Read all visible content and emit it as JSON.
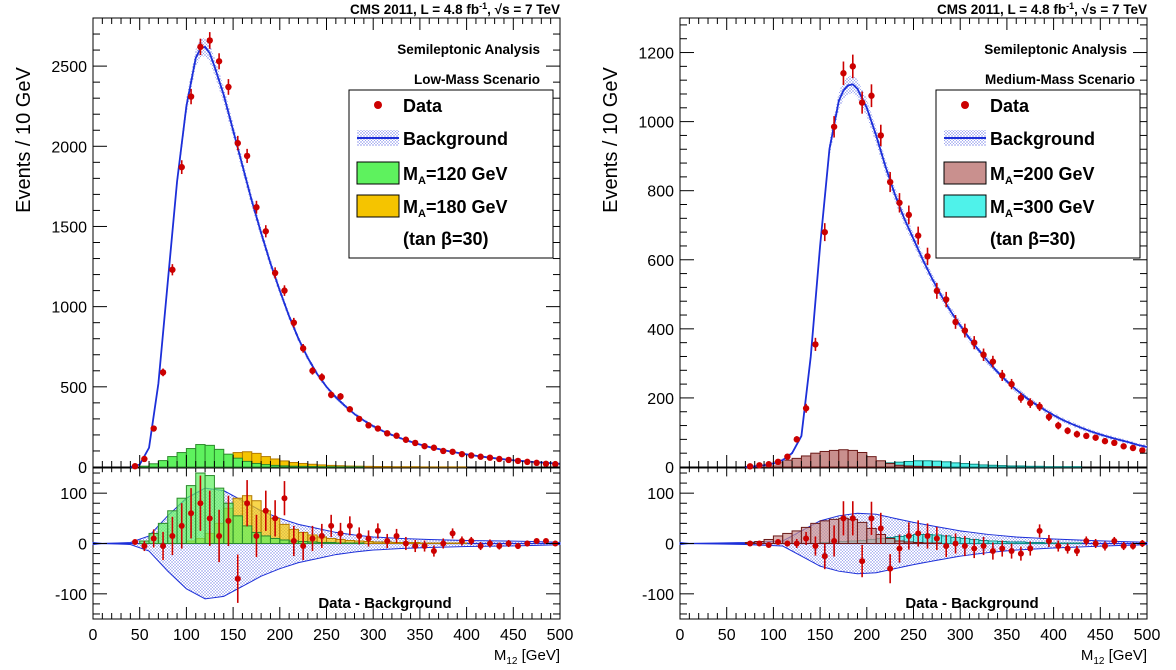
{
  "chart_data": [
    {
      "type": "bar",
      "header": "CMS 2011, L = 4.8 fb",
      "header_sup": "-1",
      "header_sqrt": "√s = 7 TeV",
      "analysis": "Semileptonic Analysis",
      "scenario": "Low-Mass Scenario",
      "ylabel": "Events / 10 GeV",
      "xlabel": "M",
      "xlabel_sub": "12",
      "xlabel_unit": "[GeV]",
      "lower_label": "Data - Background",
      "xlim": [
        0,
        500
      ],
      "ylim": [
        0,
        2800
      ],
      "ylim_lower": [
        -150,
        150
      ],
      "x_ticks": [
        0,
        50,
        100,
        150,
        200,
        250,
        300,
        350,
        400,
        450,
        500
      ],
      "y_ticks": [
        0,
        500,
        1000,
        1500,
        2000,
        2500
      ],
      "y_ticks_lower": [
        -100,
        0,
        100
      ],
      "colors": {
        "data": "#cc0000",
        "background": "#1c2fd9",
        "signal1": "#5ef25e",
        "signal1_edge": "#2a8a2a",
        "signal2": "#f5c400",
        "signal2_edge": "#b37a00"
      },
      "legend": {
        "data": "Data",
        "background": "Background",
        "signal1_label": "M",
        "signal1_sub": "A",
        "signal1_value": "=120 GeV",
        "signal2_label": "M",
        "signal2_sub": "A",
        "signal2_value": "=180 GeV",
        "note": "(tan β=30)"
      },
      "data_points": {
        "x": [
          45,
          55,
          65,
          75,
          85,
          95,
          105,
          115,
          125,
          135,
          145,
          155,
          165,
          175,
          185,
          195,
          205,
          215,
          225,
          235,
          245,
          255,
          265,
          275,
          285,
          295,
          305,
          315,
          325,
          335,
          345,
          355,
          365,
          375,
          385,
          395,
          405,
          415,
          425,
          435,
          445,
          455,
          465,
          475,
          485,
          495
        ],
        "y": [
          5,
          50,
          240,
          590,
          1230,
          1870,
          2310,
          2620,
          2660,
          2530,
          2370,
          2020,
          1940,
          1620,
          1470,
          1210,
          1100,
          900,
          740,
          600,
          560,
          450,
          440,
          360,
          300,
          260,
          240,
          210,
          195,
          170,
          150,
          130,
          120,
          100,
          95,
          80,
          72,
          64,
          58,
          50,
          44,
          38,
          32,
          26,
          20,
          18
        ],
        "err": [
          2,
          7,
          15,
          24,
          35,
          43,
          48,
          51,
          52,
          50,
          49,
          45,
          44,
          40,
          38,
          35,
          33,
          30,
          27,
          24,
          24,
          21,
          21,
          19,
          17,
          16,
          15,
          14,
          14,
          13,
          12,
          11,
          11,
          10,
          10,
          9,
          8,
          8,
          8,
          7,
          7,
          6,
          6,
          5,
          4,
          4
        ]
      },
      "background_curve": {
        "x": [
          40,
          50,
          60,
          70,
          80,
          90,
          100,
          110,
          115,
          120,
          125,
          130,
          140,
          150,
          160,
          170,
          180,
          190,
          200,
          210,
          220,
          230,
          240,
          250,
          260,
          270,
          280,
          290,
          300,
          310,
          320,
          330,
          340,
          350,
          360,
          370,
          380,
          390,
          400,
          410,
          420,
          430,
          440,
          450,
          460,
          470,
          480,
          490,
          500
        ],
        "y": [
          0,
          15,
          120,
          520,
          1150,
          1780,
          2250,
          2550,
          2610,
          2620,
          2580,
          2500,
          2320,
          2100,
          1880,
          1660,
          1460,
          1270,
          1100,
          940,
          800,
          680,
          580,
          500,
          435,
          380,
          330,
          290,
          255,
          225,
          200,
          178,
          158,
          140,
          125,
          112,
          100,
          89,
          79,
          70,
          62,
          55,
          48,
          42,
          37,
          32,
          28,
          24,
          20
        ]
      },
      "signal1_hist": {
        "bin_edges": [
          50,
          60,
          70,
          80,
          90,
          100,
          110,
          120,
          130,
          140,
          150,
          160,
          170,
          180,
          190,
          200,
          210,
          220,
          230,
          240,
          250,
          260,
          270,
          280,
          290,
          300,
          310,
          320,
          330,
          340,
          350
        ],
        "values": [
          5,
          20,
          40,
          65,
          90,
          115,
          140,
          135,
          110,
          80,
          55,
          35,
          22,
          15,
          10,
          7,
          5,
          4,
          3,
          2,
          2,
          1,
          1,
          1,
          0,
          0,
          0,
          0,
          0,
          0
        ]
      },
      "signal2_hist": {
        "bin_edges": [
          100,
          110,
          120,
          130,
          140,
          150,
          160,
          170,
          180,
          190,
          200,
          210,
          220,
          230,
          240,
          250,
          260,
          270,
          280,
          290,
          300,
          310,
          320,
          330,
          340,
          350,
          360,
          370,
          380,
          390,
          400
        ],
        "values": [
          5,
          10,
          20,
          40,
          70,
          90,
          95,
          85,
          65,
          50,
          38,
          28,
          22,
          17,
          13,
          10,
          8,
          6,
          5,
          4,
          3,
          3,
          2,
          2,
          2,
          1,
          1,
          1,
          1,
          1
        ]
      },
      "lower_data": {
        "x": [
          45,
          55,
          65,
          75,
          85,
          95,
          105,
          115,
          125,
          135,
          145,
          155,
          165,
          175,
          185,
          195,
          205,
          215,
          225,
          235,
          245,
          255,
          265,
          275,
          285,
          295,
          305,
          315,
          325,
          335,
          345,
          355,
          365,
          375,
          385,
          395,
          405,
          415,
          425,
          435,
          445,
          455,
          465,
          475,
          485,
          495
        ],
        "y": [
          3,
          -5,
          10,
          -5,
          15,
          35,
          60,
          80,
          50,
          15,
          45,
          -70,
          80,
          15,
          65,
          50,
          90,
          5,
          -5,
          10,
          15,
          35,
          20,
          35,
          15,
          10,
          25,
          5,
          15,
          0,
          -5,
          -5,
          -15,
          0,
          20,
          5,
          5,
          -5,
          0,
          -5,
          0,
          -5,
          0,
          5,
          5,
          0
        ],
        "err": [
          4,
          10,
          18,
          28,
          38,
          45,
          50,
          55,
          55,
          52,
          50,
          48,
          46,
          42,
          40,
          36,
          34,
          30,
          28,
          25,
          24,
          22,
          21,
          19,
          17,
          16,
          15,
          14,
          14,
          13,
          12,
          11,
          11,
          10,
          10,
          9,
          8,
          8,
          8,
          7,
          7,
          6,
          6,
          5,
          4,
          4
        ]
      },
      "lower_band_half_width": {
        "x": [
          0,
          10,
          40,
          60,
          80,
          100,
          120,
          140,
          160,
          180,
          200,
          220,
          240,
          260,
          280,
          300,
          330,
          360,
          400,
          440,
          470,
          490,
          500
        ],
        "y": [
          2,
          0,
          2,
          15,
          55,
          90,
          110,
          105,
          85,
          65,
          50,
          38,
          30,
          22,
          17,
          13,
          10,
          8,
          6,
          5,
          4,
          3,
          2
        ]
      }
    },
    {
      "type": "bar",
      "header": "CMS 2011, L = 4.8 fb",
      "header_sup": "-1",
      "header_sqrt": "√s = 7 TeV",
      "analysis": "Semileptonic Analysis",
      "scenario": "Medium-Mass Scenario",
      "ylabel": "Events / 10 GeV",
      "xlabel": "M",
      "xlabel_sub": "12",
      "xlabel_unit": "[GeV]",
      "lower_label": "Data - Background",
      "xlim": [
        0,
        500
      ],
      "ylim": [
        0,
        1300
      ],
      "ylim_lower": [
        -150,
        150
      ],
      "x_ticks": [
        0,
        50,
        100,
        150,
        200,
        250,
        300,
        350,
        400,
        450,
        500
      ],
      "y_ticks": [
        0,
        200,
        400,
        600,
        800,
        1000,
        1200
      ],
      "y_ticks_lower": [
        -100,
        0,
        100
      ],
      "colors": {
        "data": "#cc0000",
        "background": "#1c2fd9",
        "signal1": "#c9908e",
        "signal1_edge": "#6b1a18",
        "signal2": "#4ff2ea",
        "signal2_edge": "#0d8a84"
      },
      "legend": {
        "data": "Data",
        "background": "Background",
        "signal1_label": "M",
        "signal1_sub": "A",
        "signal1_value": "=200 GeV",
        "signal2_label": "M",
        "signal2_sub": "A",
        "signal2_value": "=300 GeV",
        "note": "(tan β=30)"
      },
      "data_points": {
        "x": [
          75,
          85,
          95,
          105,
          115,
          125,
          135,
          145,
          155,
          165,
          175,
          185,
          195,
          205,
          215,
          225,
          235,
          245,
          255,
          265,
          275,
          285,
          295,
          305,
          315,
          325,
          335,
          345,
          355,
          365,
          375,
          385,
          395,
          405,
          415,
          425,
          435,
          445,
          455,
          465,
          475,
          485,
          495
        ],
        "y": [
          2,
          5,
          8,
          15,
          30,
          80,
          170,
          355,
          680,
          985,
          1140,
          1160,
          1055,
          1075,
          960,
          825,
          765,
          730,
          670,
          610,
          510,
          485,
          420,
          395,
          360,
          325,
          305,
          265,
          240,
          200,
          185,
          175,
          145,
          120,
          105,
          95,
          90,
          85,
          75,
          70,
          60,
          55,
          48
        ],
        "err": [
          2,
          2,
          3,
          4,
          6,
          9,
          13,
          19,
          26,
          31,
          34,
          34,
          32,
          33,
          31,
          29,
          28,
          27,
          26,
          25,
          23,
          22,
          20,
          20,
          19,
          18,
          17,
          16,
          15,
          14,
          14,
          13,
          12,
          11,
          10,
          10,
          9,
          9,
          9,
          8,
          8,
          7,
          7
        ]
      },
      "background_curve": {
        "x": [
          70,
          80,
          90,
          100,
          110,
          120,
          130,
          140,
          150,
          160,
          170,
          175,
          180,
          185,
          190,
          200,
          210,
          220,
          230,
          240,
          250,
          260,
          270,
          280,
          290,
          300,
          310,
          320,
          330,
          340,
          350,
          360,
          370,
          380,
          390,
          400,
          410,
          420,
          430,
          440,
          450,
          460,
          470,
          480,
          490,
          500
        ],
        "y": [
          0,
          2,
          5,
          10,
          20,
          40,
          90,
          320,
          640,
          920,
          1060,
          1090,
          1105,
          1108,
          1095,
          1040,
          960,
          870,
          790,
          720,
          660,
          600,
          545,
          495,
          450,
          410,
          372,
          338,
          305,
          275,
          248,
          224,
          202,
          183,
          166,
          150,
          136,
          124,
          113,
          103,
          94,
          86,
          79,
          72,
          64,
          58
        ]
      },
      "signal1_hist": {
        "bin_edges": [
          70,
          80,
          90,
          100,
          110,
          120,
          130,
          140,
          150,
          160,
          170,
          180,
          190,
          200,
          210,
          220,
          230,
          240,
          250,
          260,
          270,
          280,
          290,
          300
        ],
        "values": [
          2,
          4,
          8,
          15,
          20,
          25,
          32,
          40,
          45,
          48,
          50,
          48,
          42,
          30,
          18,
          10,
          5,
          3,
          2,
          1,
          1,
          0,
          0
        ]
      },
      "signal2_hist": {
        "bin_edges": [
          150,
          160,
          170,
          180,
          190,
          200,
          210,
          220,
          230,
          240,
          250,
          260,
          270,
          280,
          290,
          300,
          310,
          320,
          330,
          340,
          350,
          360,
          370,
          380,
          390,
          400,
          410,
          420,
          430,
          440,
          450
        ],
        "values": [
          2,
          3,
          4,
          5,
          6,
          8,
          10,
          12,
          14,
          16,
          18,
          18,
          17,
          15,
          12,
          10,
          8,
          6,
          5,
          4,
          3,
          3,
          2,
          2,
          1,
          1,
          1,
          1,
          0,
          0
        ]
      },
      "lower_data": {
        "x": [
          75,
          85,
          95,
          105,
          115,
          125,
          135,
          145,
          155,
          165,
          175,
          185,
          195,
          205,
          215,
          225,
          235,
          245,
          255,
          265,
          275,
          285,
          295,
          305,
          315,
          325,
          335,
          345,
          355,
          365,
          375,
          385,
          395,
          405,
          415,
          425,
          435,
          445,
          455,
          465,
          475,
          485,
          495
        ],
        "y": [
          0,
          0,
          -3,
          3,
          0,
          0,
          10,
          -5,
          -25,
          5,
          50,
          50,
          -35,
          50,
          30,
          -50,
          -10,
          15,
          20,
          15,
          10,
          -5,
          0,
          -5,
          -10,
          -5,
          -15,
          -10,
          -15,
          -20,
          -10,
          25,
          5,
          -5,
          -10,
          -15,
          5,
          0,
          -5,
          5,
          -5,
          -5,
          0
        ],
        "err": [
          2,
          2,
          3,
          4,
          6,
          9,
          13,
          19,
          26,
          31,
          34,
          34,
          32,
          33,
          31,
          29,
          28,
          27,
          26,
          25,
          23,
          22,
          20,
          20,
          19,
          18,
          17,
          16,
          15,
          14,
          14,
          13,
          12,
          11,
          10,
          10,
          9,
          9,
          9,
          8,
          8,
          7,
          7
        ]
      },
      "lower_band_half_width": {
        "x": [
          0,
          10,
          70,
          110,
          130,
          150,
          170,
          190,
          210,
          230,
          250,
          270,
          300,
          330,
          360,
          400,
          440,
          470,
          490,
          500
        ],
        "y": [
          2,
          0,
          2,
          5,
          25,
          45,
          55,
          60,
          58,
          50,
          42,
          35,
          25,
          18,
          13,
          9,
          6,
          4,
          3,
          2
        ]
      }
    }
  ]
}
